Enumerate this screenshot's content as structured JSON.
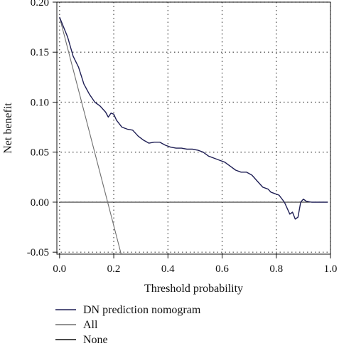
{
  "chart_data": {
    "type": "line",
    "title": "",
    "xlabel": "Threshold probability",
    "ylabel": "Net benefit",
    "xlim": [
      -0.01,
      1.0
    ],
    "ylim": [
      -0.052,
      0.2
    ],
    "x_ticks": [
      0.0,
      0.2,
      0.4,
      0.6,
      0.8,
      1.0
    ],
    "x_tick_labels": [
      "0.0",
      "0.2",
      "0.4",
      "0.6",
      "0.8",
      "1.0"
    ],
    "y_ticks": [
      -0.05,
      0.0,
      0.05,
      0.1,
      0.15,
      0.2
    ],
    "y_tick_labels": [
      "-0.05",
      "0.00",
      "0.05",
      "0.10",
      "0.15",
      "0.20"
    ],
    "grid": true,
    "legend_position": "below",
    "series": [
      {
        "name": "DN prediction nomogram",
        "color": "#1f1f55",
        "x": [
          0.0,
          0.03,
          0.05,
          0.07,
          0.09,
          0.11,
          0.13,
          0.15,
          0.17,
          0.18,
          0.19,
          0.2,
          0.21,
          0.23,
          0.25,
          0.27,
          0.29,
          0.31,
          0.33,
          0.35,
          0.37,
          0.39,
          0.41,
          0.43,
          0.45,
          0.47,
          0.49,
          0.51,
          0.53,
          0.55,
          0.57,
          0.59,
          0.61,
          0.63,
          0.65,
          0.67,
          0.69,
          0.71,
          0.73,
          0.75,
          0.77,
          0.78,
          0.79,
          0.81,
          0.83,
          0.85,
          0.86,
          0.87,
          0.88,
          0.89,
          0.9,
          0.91,
          0.93,
          0.95,
          0.99
        ],
        "y": [
          0.185,
          0.165,
          0.146,
          0.135,
          0.118,
          0.108,
          0.1,
          0.096,
          0.09,
          0.085,
          0.089,
          0.088,
          0.082,
          0.075,
          0.073,
          0.072,
          0.066,
          0.062,
          0.059,
          0.06,
          0.06,
          0.057,
          0.055,
          0.054,
          0.054,
          0.053,
          0.053,
          0.052,
          0.05,
          0.046,
          0.044,
          0.042,
          0.04,
          0.036,
          0.032,
          0.03,
          0.03,
          0.027,
          0.021,
          0.015,
          0.013,
          0.01,
          0.009,
          0.007,
          0.0,
          -0.012,
          -0.01,
          -0.017,
          -0.015,
          0.0,
          0.003,
          0.001,
          0.0,
          0.0,
          0.0
        ]
      },
      {
        "name": "All",
        "color": "#6e6e6e",
        "x": [
          0.0,
          0.235
        ],
        "y": [
          0.185,
          -0.06
        ]
      },
      {
        "name": "None",
        "color": "#111111",
        "x": [
          0.0,
          0.99
        ],
        "y": [
          0.0,
          0.0
        ]
      }
    ]
  }
}
